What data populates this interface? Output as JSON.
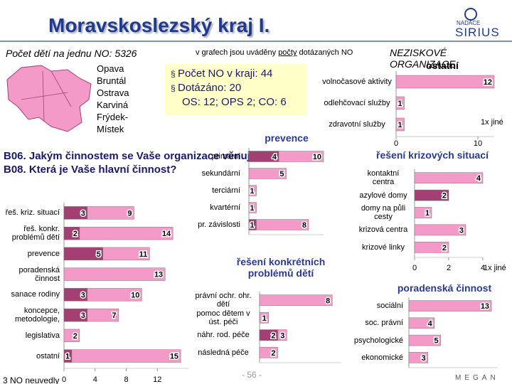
{
  "header": {
    "title": "Moravskoslezský kraj I.",
    "children_per_org": "Počet dětí na jednu NO: 5326",
    "note": [
      "v grafech jsou uváděny ",
      "počty",
      " dotázaných NO"
    ],
    "section": "NEZISKOVÉ ORGANIZACE",
    "logo": [
      "NADACE",
      "SIRIUS"
    ]
  },
  "region": {
    "districts": [
      "Opava",
      "Bruntál",
      "Ostrava",
      "Karviná",
      "Frýdek-Místek"
    ],
    "facts": [
      "Počet NO v kraji: 44",
      "Dotázáno: 20",
      "OS: 12; OPS 2; CO: 6"
    ]
  },
  "question": [
    "B06. Jakým činnostem se Vaše organizace věnuje?",
    "B08. Která je Vaše hlavní činnost?"
  ],
  "footnote": "3 NO neuvedly",
  "page": "- 56 -",
  "footer_logo": "MEGAN",
  "chart_data": [
    {
      "type": "barh",
      "categories": [
        "řeš. kriz. situací",
        "řeš. konkr. problémů dětí",
        "prevence",
        "poradenská činnost",
        "sanace rodiny",
        "koncepce, metodologie,",
        "legislativa",
        "ostatní"
      ],
      "series": [
        {
          "color": "#a33f73",
          "values": [
            3,
            2,
            5,
            null,
            3,
            3,
            null,
            1
          ]
        },
        {
          "color": "#f49ac8",
          "values": [
            9,
            14,
            11,
            13,
            10,
            7,
            2,
            15
          ]
        }
      ],
      "xlim": [
        0,
        16
      ],
      "xticks": [
        0,
        4,
        8,
        12
      ]
    },
    {
      "type": "barh",
      "title": "ostatní",
      "categories": [
        "volnočasové aktivity",
        "odlehčovací služby",
        "zdravotní služby"
      ],
      "series": [
        {
          "color": "#f49ac8",
          "values": [
            12,
            1,
            1
          ]
        }
      ],
      "xlim": [
        0,
        12
      ],
      "xticks": [
        0,
        10
      ],
      "annotation": "1x jiné"
    },
    {
      "type": "barh",
      "title": "prevence",
      "categories": [
        "primární",
        "sekundární",
        "terciární",
        "kvartérní",
        "pr. závislosti"
      ],
      "series": [
        {
          "color": "#a33f73",
          "values": [
            4,
            null,
            null,
            null,
            1
          ]
        },
        {
          "color": "#f49ac8",
          "values": [
            10,
            5,
            1,
            1,
            8
          ]
        }
      ],
      "xlim": [
        0,
        10
      ]
    },
    {
      "type": "barh",
      "title": "řešení krizových situací",
      "categories": [
        "kontaktní centra",
        "azylové domy",
        "domy na půli cesty",
        "krizová centra",
        "krizové linky"
      ],
      "series": [
        {
          "color": "#a33f73",
          "values": [
            null,
            2,
            null,
            null,
            null
          ]
        },
        {
          "color": "#f49ac8",
          "values": [
            4,
            null,
            1,
            3,
            2
          ]
        }
      ],
      "xlim": [
        0,
        4
      ],
      "xticks": [
        0,
        2,
        4
      ],
      "annotation": "1x jiné"
    },
    {
      "type": "barh",
      "title": "řešení konkrétních problémů dětí",
      "categories": [
        "právní ochr. ohr. dětí",
        "pomoc dětem v úst. péči",
        "náhr. rod. péče",
        "následná péče"
      ],
      "series": [
        {
          "color": "#a33f73",
          "values": [
            null,
            null,
            2,
            null
          ]
        },
        {
          "color": "#f49ac8",
          "values": [
            8,
            1,
            3,
            2
          ]
        }
      ],
      "xlim": [
        0,
        9
      ]
    },
    {
      "type": "barh",
      "title": "poradenská činnost",
      "categories": [
        "sociální",
        "soc. právní",
        "psychologické",
        "ekonomické"
      ],
      "series": [
        {
          "color": "#f49ac8",
          "values": [
            13,
            4,
            5,
            3
          ]
        }
      ],
      "xlim": [
        0,
        14
      ]
    }
  ]
}
